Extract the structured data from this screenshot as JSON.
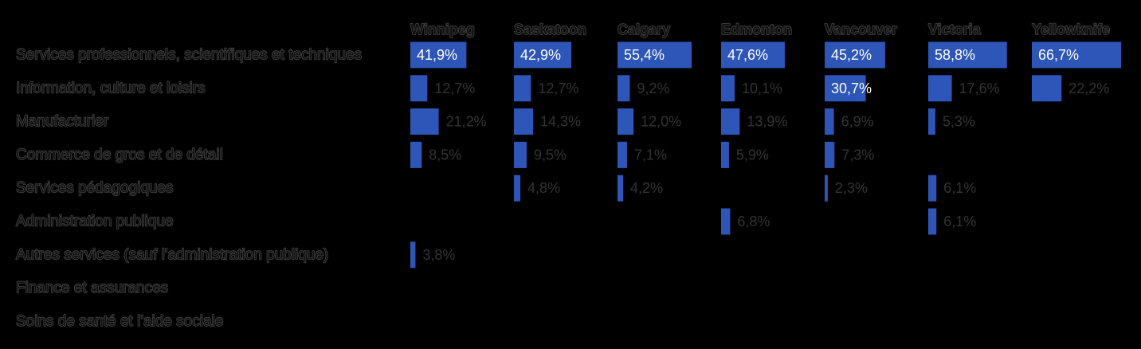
{
  "chart_data": {
    "type": "bar",
    "orientation": "horizontal",
    "layout": "small-multiples",
    "color": "#2e55b8",
    "categories": [
      "Services professionnels, scientifiques et techniques",
      "Information, culture et loisirs",
      "Manufacturier",
      "Commerce de gros et de détail",
      "Services pédagogiques",
      "Administration publique",
      "Autres services (sauf l'administration publique)",
      "Finance et assurances",
      "Soins de santé et l'aide sociale"
    ],
    "series": [
      {
        "name": "Winnipeg",
        "values": [
          41.9,
          12.7,
          21.2,
          8.5,
          null,
          null,
          3.8,
          null,
          null
        ],
        "labels": [
          "41,9%",
          "12,7%",
          "21,2%",
          "8,5%",
          "",
          "",
          "3,8%",
          "",
          ""
        ]
      },
      {
        "name": "Saskatoon",
        "values": [
          42.9,
          12.7,
          14.3,
          9.5,
          4.8,
          null,
          null,
          null,
          null
        ],
        "labels": [
          "42,9%",
          "12,7%",
          "14,3%",
          "9,5%",
          "4,8%",
          "",
          "",
          "",
          ""
        ]
      },
      {
        "name": "Calgary",
        "values": [
          55.4,
          9.2,
          12.0,
          7.1,
          4.2,
          null,
          null,
          null,
          null
        ],
        "labels": [
          "55,4%",
          "9,2%",
          "12,0%",
          "7,1%",
          "4,2%",
          "",
          "",
          "",
          ""
        ]
      },
      {
        "name": "Edmonton",
        "values": [
          47.6,
          10.1,
          13.9,
          5.9,
          null,
          6.8,
          null,
          null,
          null
        ],
        "labels": [
          "47,6%",
          "10,1%",
          "13,9%",
          "5,9%",
          "",
          "6,8%",
          "",
          "",
          ""
        ]
      },
      {
        "name": "Vancouver",
        "values": [
          45.2,
          30.7,
          6.9,
          7.3,
          2.3,
          null,
          null,
          null,
          null
        ],
        "labels": [
          "45,2%",
          "30,7%",
          "6,9%",
          "7,3%",
          "2,3%",
          "",
          "",
          "",
          ""
        ]
      },
      {
        "name": "Victoria",
        "values": [
          58.8,
          17.6,
          5.3,
          null,
          6.1,
          6.1,
          null,
          null,
          null
        ],
        "labels": [
          "58,8%",
          "17,6%",
          "5,3%",
          "",
          "6,1%",
          "6,1%",
          "",
          "",
          ""
        ]
      },
      {
        "name": "Yellowknife",
        "values": [
          66.7,
          22.2,
          null,
          null,
          null,
          null,
          null,
          null,
          null
        ],
        "labels": [
          "66,7%",
          "22,2%",
          "",
          "",
          "",
          "",
          "",
          "",
          ""
        ]
      }
    ],
    "xlim": [
      0,
      66.7
    ]
  }
}
